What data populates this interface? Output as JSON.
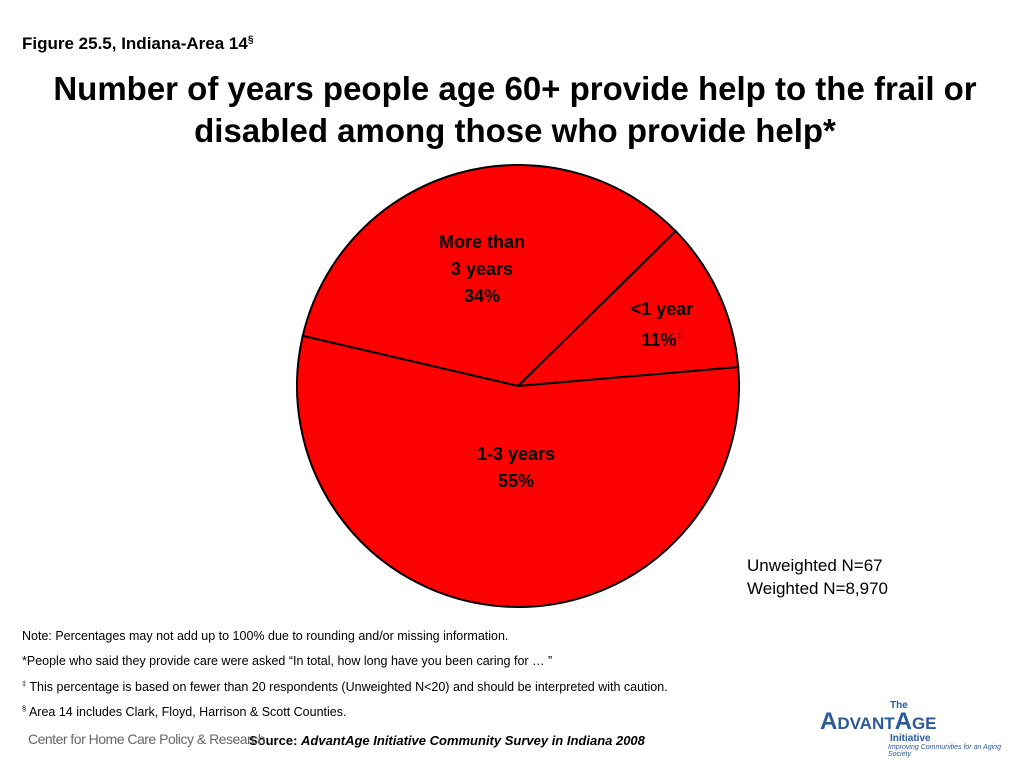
{
  "chart_data": {
    "type": "pie",
    "figure": "Figure 25.5, Indiana-Area 14",
    "figure_mark": "§",
    "title": "Number of years people age 60+ provide help to the frail or disabled among those who provide help*",
    "categories": [
      "<1 year",
      "More than 3 years",
      "1-3 years"
    ],
    "values": [
      11,
      34,
      55
    ],
    "value_labels": [
      "11%",
      "34%",
      "55%"
    ],
    "value_label_marks": [
      "‡",
      null,
      null
    ],
    "color": "#ff0000",
    "sample": [
      "Unweighted N=67",
      "Weighted N=8,970"
    ],
    "notes": [
      {
        "mark": null,
        "text": "Note: Percentages may not add up to 100% due to rounding and/or missing information."
      },
      {
        "mark": null,
        "text": "*People who said they provide care were asked “In total, how long have you been caring for … ”"
      },
      {
        "mark": "‡",
        "text": "This percentage is based on fewer than 20 respondents (Unweighted N<20) and should be interpreted with caution."
      },
      {
        "mark": "§",
        "text": "Area 14 includes Clark, Floyd, Harrison & Scott Counties."
      }
    ],
    "source_label": "Source:",
    "source": "AdvantAge Initiative Community Survey in Indiana 2008",
    "logo_left": "Center for Home Care Policy & Research",
    "logo_right": {
      "small": "The",
      "name": "AdvantAge",
      "sub": "Initiative",
      "tagline": "Improving Communities for an Aging Society"
    }
  }
}
